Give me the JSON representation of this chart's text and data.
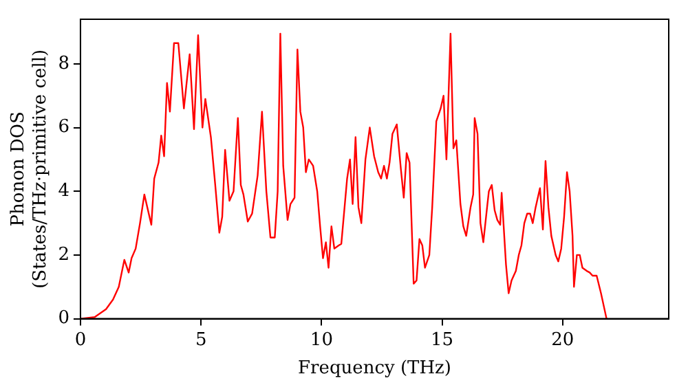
{
  "chart_data": {
    "type": "line",
    "xlabel": "Frequency (THz)",
    "ylabel": [
      "Phonon DOS",
      "(States/THz·primitive cell)"
    ],
    "xlim": [
      0,
      24.4
    ],
    "xticks": [
      0,
      5,
      10,
      15,
      20
    ],
    "ylim": [
      0,
      9.4
    ],
    "yticks": [
      0,
      2,
      4,
      6,
      8
    ],
    "grid": false,
    "legend": false,
    "marker": "none",
    "line_style": "solid",
    "series": [
      {
        "color": "#ff0000",
        "x": [
          0,
          0.59,
          1.06,
          1.35,
          1.59,
          1.82,
          2.0,
          2.12,
          2.29,
          2.47,
          2.65,
          2.94,
          3.06,
          3.24,
          3.35,
          3.47,
          3.59,
          3.71,
          3.88,
          4.06,
          4.29,
          4.53,
          4.71,
          4.88,
          5.06,
          5.18,
          5.41,
          5.59,
          5.76,
          5.88,
          6.0,
          6.18,
          6.35,
          6.53,
          6.65,
          6.76,
          6.94,
          7.12,
          7.35,
          7.53,
          7.71,
          7.88,
          8.06,
          8.18,
          8.29,
          8.41,
          8.59,
          8.71,
          8.88,
          9.0,
          9.12,
          9.24,
          9.35,
          9.47,
          9.65,
          9.82,
          9.94,
          10.06,
          10.18,
          10.29,
          10.41,
          10.53,
          10.71,
          10.82,
          11.06,
          11.18,
          11.29,
          11.41,
          11.53,
          11.65,
          11.82,
          12.0,
          12.18,
          12.35,
          12.47,
          12.59,
          12.71,
          12.82,
          12.94,
          13.12,
          13.29,
          13.41,
          13.53,
          13.65,
          13.82,
          13.94,
          14.06,
          14.18,
          14.29,
          14.47,
          14.59,
          14.76,
          14.94,
          15.06,
          15.18,
          15.35,
          15.47,
          15.59,
          15.76,
          15.88,
          16.0,
          16.18,
          16.29,
          16.35,
          16.47,
          16.59,
          16.71,
          16.88,
          16.94,
          17.06,
          17.18,
          17.29,
          17.41,
          17.47,
          17.65,
          17.76,
          17.88,
          18.06,
          18.18,
          18.29,
          18.41,
          18.53,
          18.65,
          18.76,
          18.88,
          19.06,
          19.18,
          19.29,
          19.41,
          19.53,
          19.71,
          19.82,
          19.94,
          20.06,
          20.18,
          20.29,
          20.41,
          20.47,
          20.59,
          20.71,
          20.82,
          21.0,
          21.12,
          21.24,
          21.41,
          21.59,
          21.82
        ],
        "values": [
          0,
          0.05,
          0.3,
          0.6,
          1.0,
          1.85,
          1.45,
          1.9,
          2.2,
          3.0,
          3.9,
          2.95,
          4.4,
          4.9,
          5.75,
          5.1,
          7.4,
          6.5,
          8.65,
          8.65,
          6.6,
          8.3,
          5.95,
          8.9,
          6.0,
          6.9,
          5.7,
          4.2,
          2.7,
          3.2,
          5.3,
          3.7,
          4.0,
          6.3,
          4.2,
          3.9,
          3.05,
          3.3,
          4.5,
          6.5,
          4.0,
          2.55,
          2.55,
          4.0,
          8.95,
          4.8,
          3.1,
          3.6,
          3.8,
          8.45,
          6.5,
          6.0,
          4.6,
          5.0,
          4.8,
          4.0,
          2.9,
          1.9,
          2.4,
          1.6,
          2.9,
          2.2,
          2.3,
          2.35,
          4.4,
          5.0,
          3.6,
          5.7,
          3.5,
          3.0,
          5.0,
          6.0,
          5.1,
          4.6,
          4.4,
          4.8,
          4.4,
          4.9,
          5.8,
          6.1,
          4.7,
          3.8,
          5.2,
          4.9,
          1.1,
          1.2,
          2.5,
          2.3,
          1.6,
          2.0,
          3.5,
          6.2,
          6.6,
          7.0,
          5.0,
          8.95,
          5.35,
          5.6,
          3.6,
          2.9,
          2.6,
          3.5,
          3.9,
          6.3,
          5.8,
          3.0,
          2.4,
          3.6,
          4.0,
          4.2,
          3.4,
          3.1,
          2.95,
          3.95,
          1.7,
          0.8,
          1.2,
          1.5,
          2.0,
          2.3,
          3.0,
          3.3,
          3.3,
          3.0,
          3.5,
          4.1,
          2.8,
          4.95,
          3.5,
          2.6,
          2.0,
          1.8,
          2.2,
          3.2,
          4.6,
          4.0,
          2.6,
          1.0,
          2.0,
          2.0,
          1.6,
          1.5,
          1.45,
          1.35,
          1.35,
          0.8,
          0
        ]
      }
    ]
  }
}
